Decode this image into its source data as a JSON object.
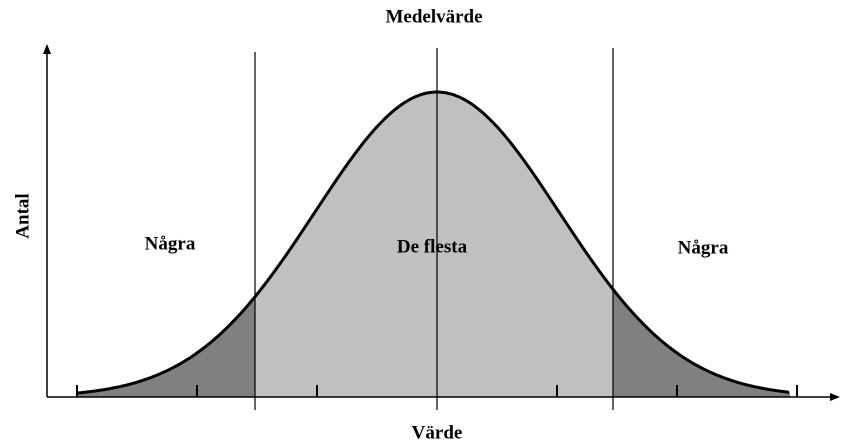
{
  "title": "Medelvärde",
  "axes": {
    "x_label": "Värde",
    "y_label": "Antal"
  },
  "regions": [
    {
      "label": "Några"
    },
    {
      "label": "De flesta"
    },
    {
      "label": "Några"
    }
  ]
}
